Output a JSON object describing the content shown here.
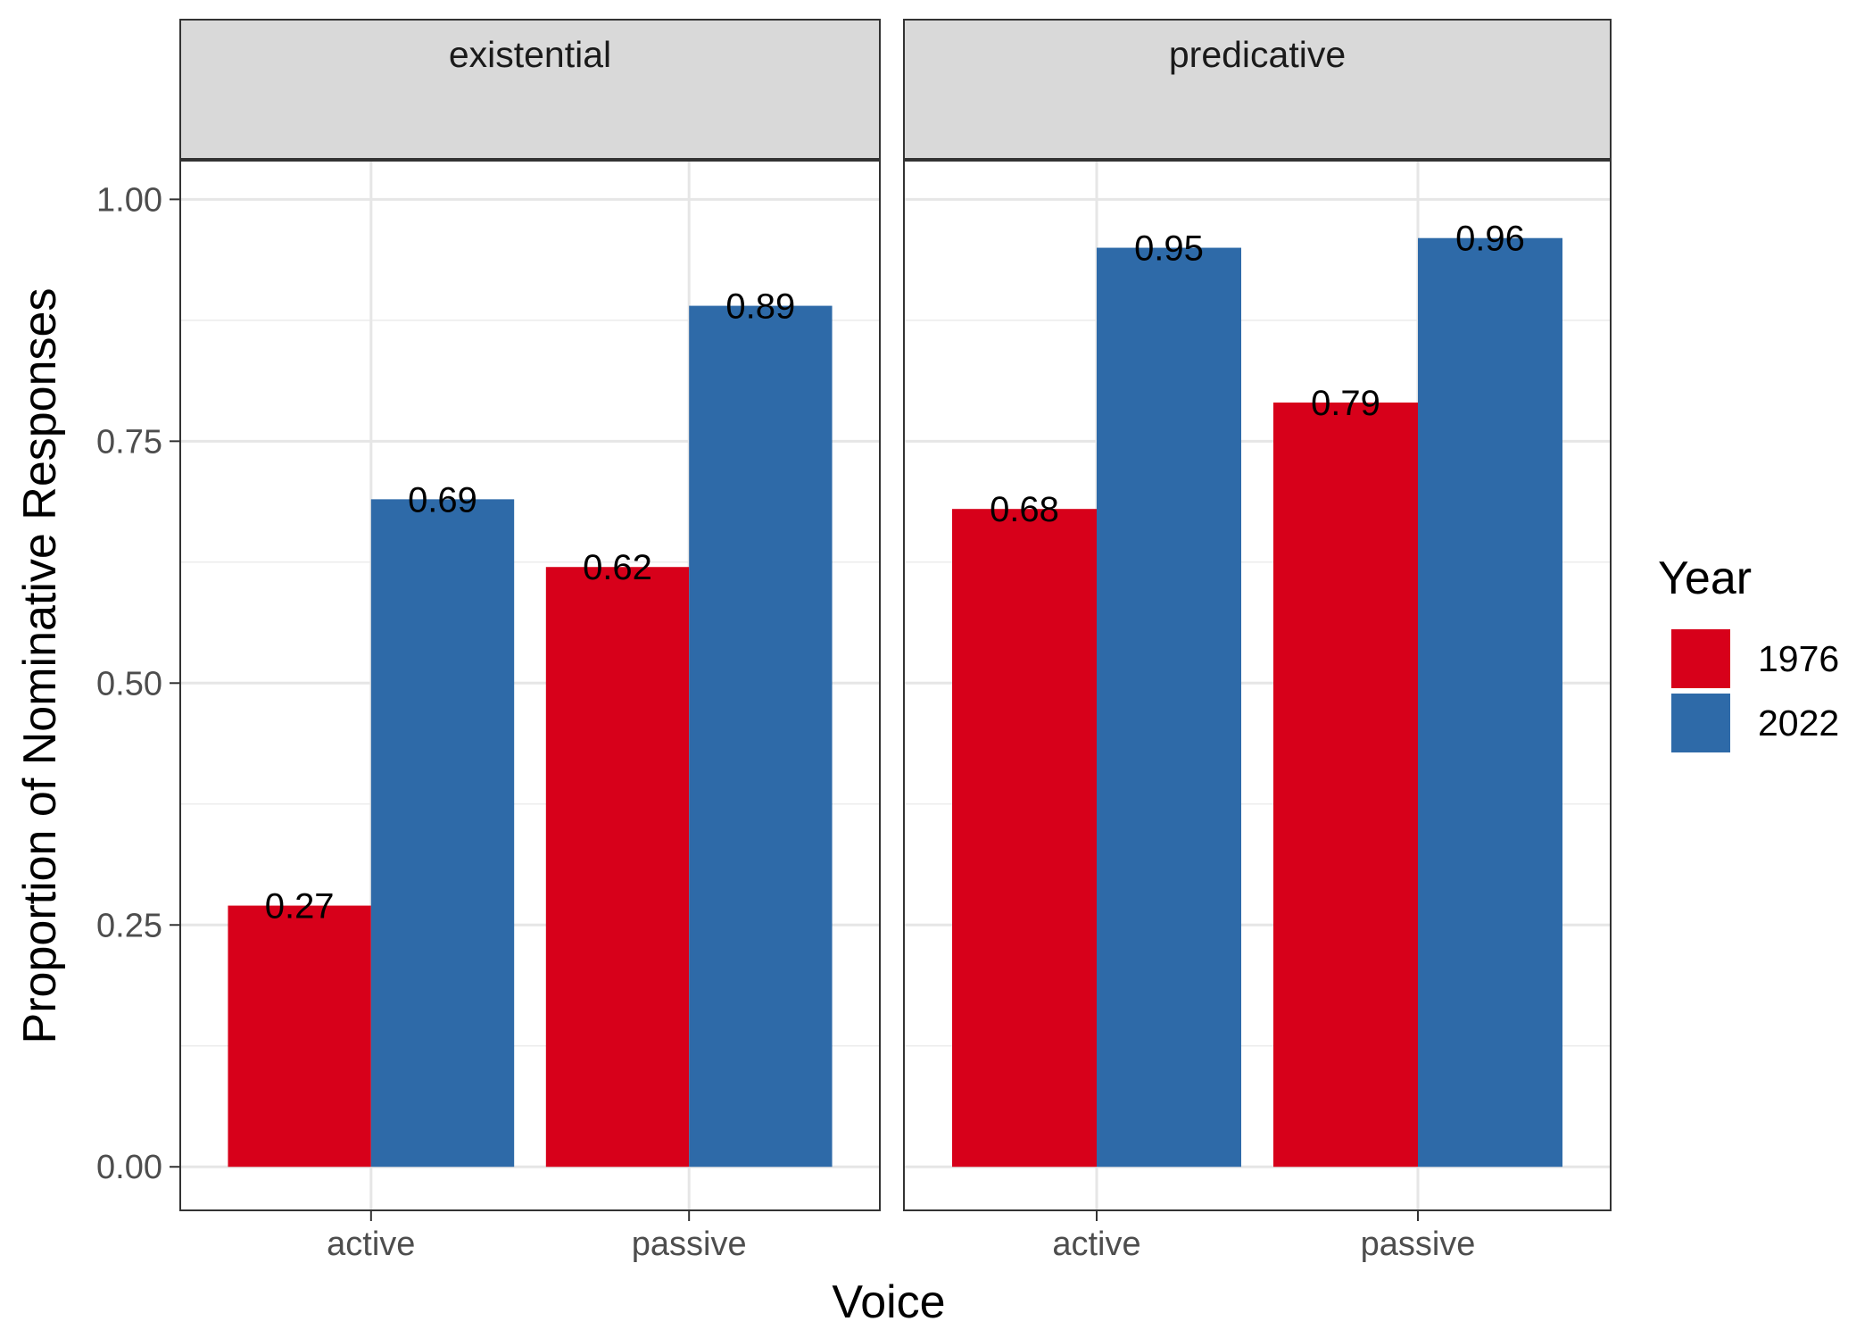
{
  "chart_data": {
    "type": "bar",
    "facet_by": "",
    "facets": [
      {
        "name": "existential",
        "categories": [
          "active",
          "passive"
        ],
        "series": [
          {
            "name": "1976",
            "values": [
              0.27,
              0.62
            ],
            "labels": [
              "0.27",
              "0.62"
            ]
          },
          {
            "name": "2022",
            "values": [
              0.69,
              0.89
            ],
            "labels": [
              "0.69",
              "0.89"
            ]
          }
        ]
      },
      {
        "name": "predicative",
        "categories": [
          "active",
          "passive"
        ],
        "series": [
          {
            "name": "1976",
            "values": [
              0.68,
              0.79
            ],
            "labels": [
              "0.68",
              "0.79"
            ]
          },
          {
            "name": "2022",
            "values": [
              0.95,
              0.96
            ],
            "labels": [
              "0.95",
              "0.96"
            ]
          }
        ]
      }
    ],
    "xlabel": "Voice",
    "ylabel": "Proportion of Nominative Responses",
    "ylim": [
      -0.045,
      1.04
    ],
    "yticks": [
      0.0,
      0.25,
      0.5,
      0.75,
      1.0
    ],
    "ytick_labels": [
      "0.00",
      "0.25",
      "0.50",
      "0.75",
      "1.00"
    ],
    "grid": true,
    "legend": {
      "title": "Year",
      "position": "right",
      "entries": [
        {
          "name": "1976",
          "color": "#d7001a"
        },
        {
          "name": "2022",
          "color": "#2e6aa8"
        }
      ]
    }
  }
}
